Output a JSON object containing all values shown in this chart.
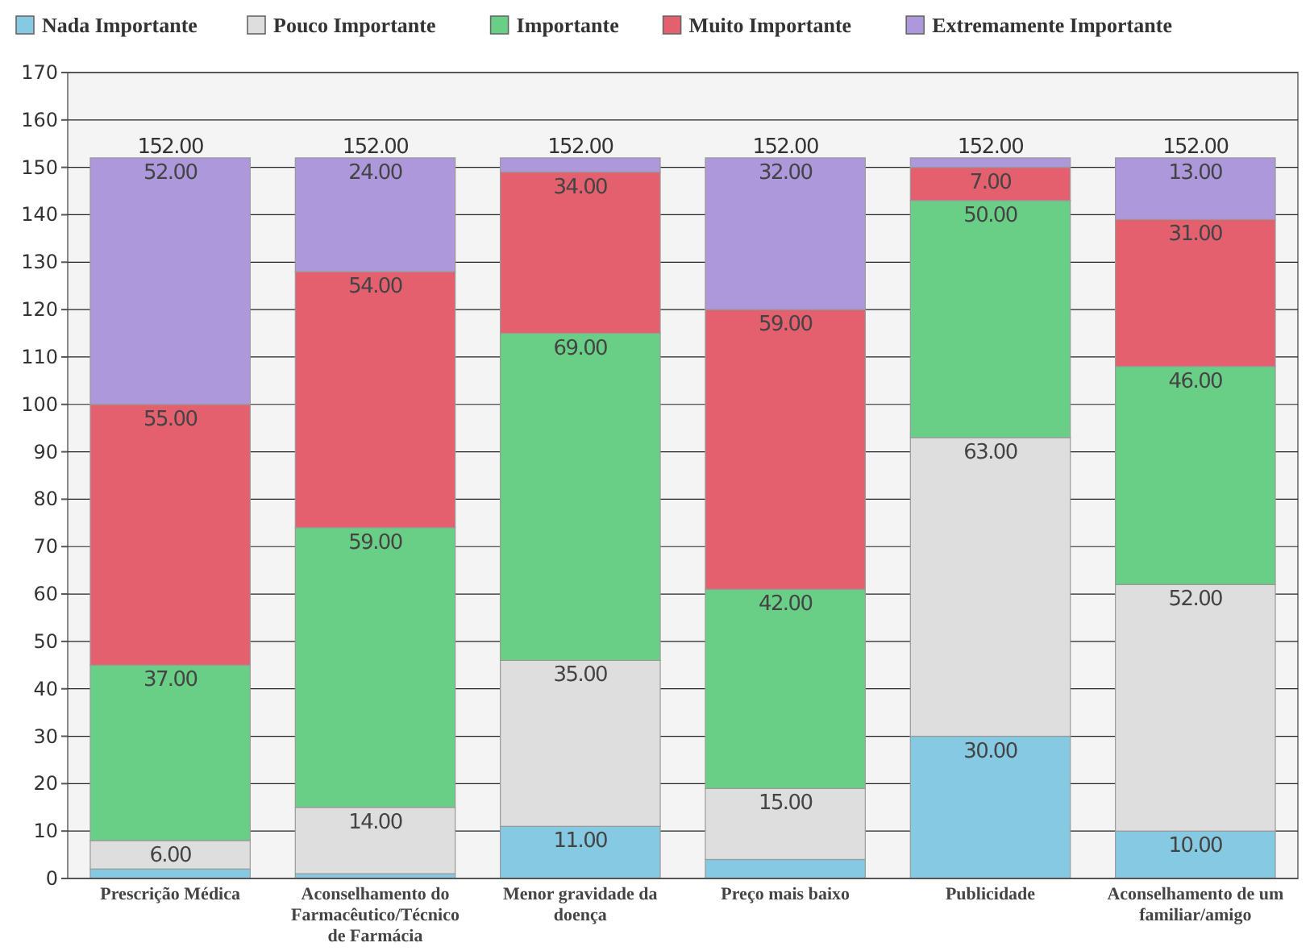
{
  "chart_data": {
    "type": "bar",
    "stacked": true,
    "categories": [
      "Prescrição Médica",
      "Aconselhamento do Farmacêutico/Técnico de Farmácia",
      "Menor gravidade da doença",
      "Preço mais baixo",
      "Publicidade",
      "Aconselhamento de um familiar/amigo"
    ],
    "series": [
      {
        "name": "Nada Importante",
        "color": "#86c9e2",
        "values": [
          2,
          1,
          11,
          4,
          30,
          10
        ],
        "value_labels": [
          null,
          null,
          "11.00",
          null,
          "30.00",
          "10.00"
        ]
      },
      {
        "name": "Pouco Importante",
        "color": "#dedede",
        "values": [
          6,
          14,
          35,
          15,
          63,
          52
        ],
        "value_labels": [
          "6.00",
          "14.00",
          "35.00",
          "15.00",
          "63.00",
          "52.00"
        ]
      },
      {
        "name": "Importante",
        "color": "#6acf86",
        "values": [
          37,
          59,
          69,
          42,
          50,
          46
        ],
        "value_labels": [
          "37.00",
          "59.00",
          "69.00",
          "42.00",
          "50.00",
          "46.00"
        ]
      },
      {
        "name": "Muito Importante",
        "color": "#e4606f",
        "values": [
          55,
          54,
          34,
          59,
          7,
          31
        ],
        "value_labels": [
          "55.00",
          "54.00",
          "34.00",
          "59.00",
          "7.00",
          "31.00"
        ]
      },
      {
        "name": "Extremamente Importante",
        "color": "#ad98dc",
        "values": [
          52,
          24,
          3,
          32,
          2,
          13
        ],
        "value_labels": [
          "52.00",
          "24.00",
          null,
          "32.00",
          null,
          "13.00"
        ]
      }
    ],
    "totals": [
      "152.00",
      "152.00",
      "152.00",
      "152.00",
      "152.00",
      "152.00"
    ],
    "ylim": [
      0,
      170
    ],
    "yticks": [
      0,
      10,
      20,
      30,
      40,
      50,
      60,
      70,
      80,
      90,
      100,
      110,
      120,
      130,
      140,
      150,
      160,
      170
    ],
    "grid": "y",
    "legend": "top left"
  }
}
